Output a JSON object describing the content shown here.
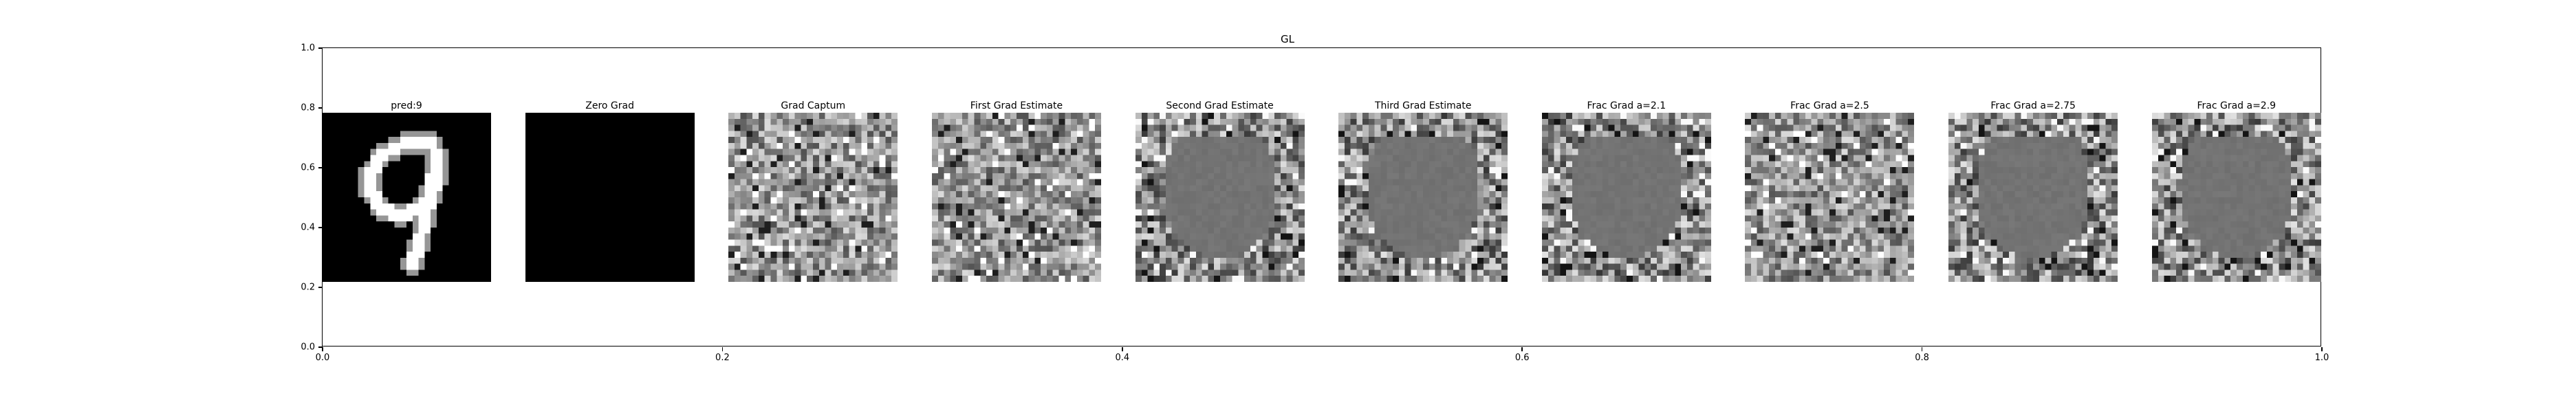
{
  "figure_title": "GL",
  "chart_data": {
    "type": "image-grid",
    "title": "GL",
    "xlim": [
      0.0,
      1.0
    ],
    "ylim": [
      0.0,
      1.0
    ],
    "x_ticks": [
      "0.0",
      "0.2",
      "0.4",
      "0.6",
      "0.8",
      "1.0"
    ],
    "y_ticks": [
      "0.0",
      "0.2",
      "0.4",
      "0.6",
      "0.8",
      "1.0"
    ],
    "grid": false,
    "panels": [
      {
        "title": "pred:9",
        "style": "digit"
      },
      {
        "title": "Zero Grad",
        "style": "zero"
      },
      {
        "title": "Grad Captum",
        "style": "noise"
      },
      {
        "title": "First Grad Estimate",
        "style": "noise"
      },
      {
        "title": "Second Grad Estimate",
        "style": "blob"
      },
      {
        "title": "Third Grad Estimate",
        "style": "blob"
      },
      {
        "title": "Frac Grad a=2.1",
        "style": "blob"
      },
      {
        "title": "Frac Grad a=2.5",
        "style": "noise"
      },
      {
        "title": "Frac Grad a=2.75",
        "style": "blob"
      },
      {
        "title": "Frac Grad a=2.9",
        "style": "blob"
      }
    ]
  }
}
